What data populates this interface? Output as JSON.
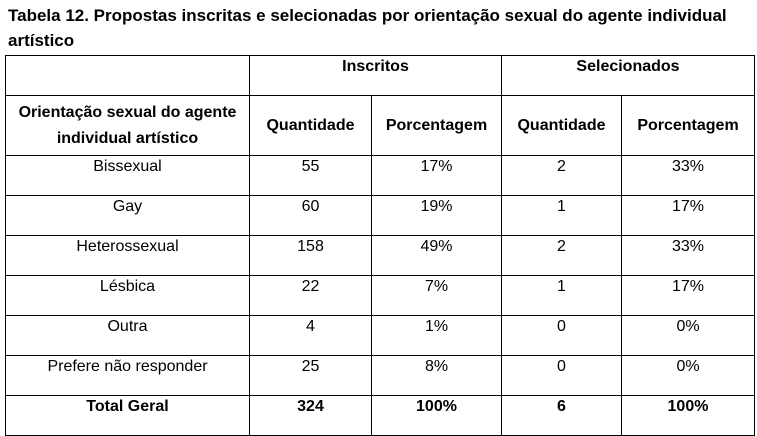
{
  "header": {
    "title": "Tabela 12. Propostas inscritas e selecionadas por orientação sexual do agente individual artístico"
  },
  "table": {
    "group_headers": [
      "Inscritos",
      "Selecionados"
    ],
    "columns": [
      "Orientação sexual do agente individual artístico",
      "Quantidade",
      "Porcentagem",
      "Quantidade",
      "Porcentagem"
    ],
    "rows": [
      [
        "Bissexual",
        55,
        "17%",
        2,
        "33%"
      ],
      [
        "Gay",
        60,
        "19%",
        1,
        "17%"
      ],
      [
        "Heterossexual",
        158,
        "49%",
        2,
        "33%"
      ],
      [
        "Lésbica",
        22,
        "7%",
        1,
        "17%"
      ],
      [
        "Outra",
        4,
        "1%",
        0,
        "0%"
      ],
      [
        "Prefere não responder",
        25,
        "8%",
        0,
        "0%"
      ]
    ],
    "total": [
      "Total Geral",
      324,
      "100%",
      6,
      "100%"
    ]
  }
}
